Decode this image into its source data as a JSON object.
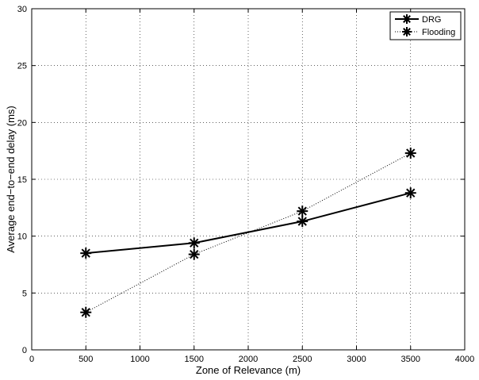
{
  "chart_data": {
    "type": "line",
    "title": "",
    "xlabel": "Zone of Relevance (m)",
    "ylabel": "Average end−to−end delay (ms)",
    "xlim": [
      0,
      4000
    ],
    "ylim": [
      0,
      30
    ],
    "xticks": [
      0,
      500,
      1000,
      1500,
      2000,
      2500,
      3000,
      3500,
      4000
    ],
    "yticks": [
      0,
      5,
      10,
      15,
      20,
      25,
      30
    ],
    "grid": true,
    "legend_position": "top-right",
    "x": [
      500,
      1500,
      2500,
      3500
    ],
    "series": [
      {
        "name": "DRG",
        "values": [
          8.5,
          9.4,
          11.3,
          13.8
        ],
        "line_style": "solid",
        "marker": "asterisk",
        "color": "#000000"
      },
      {
        "name": "Flooding",
        "values": [
          3.3,
          8.4,
          12.2,
          17.3
        ],
        "line_style": "dotted",
        "marker": "asterisk",
        "color": "#000000"
      }
    ]
  }
}
